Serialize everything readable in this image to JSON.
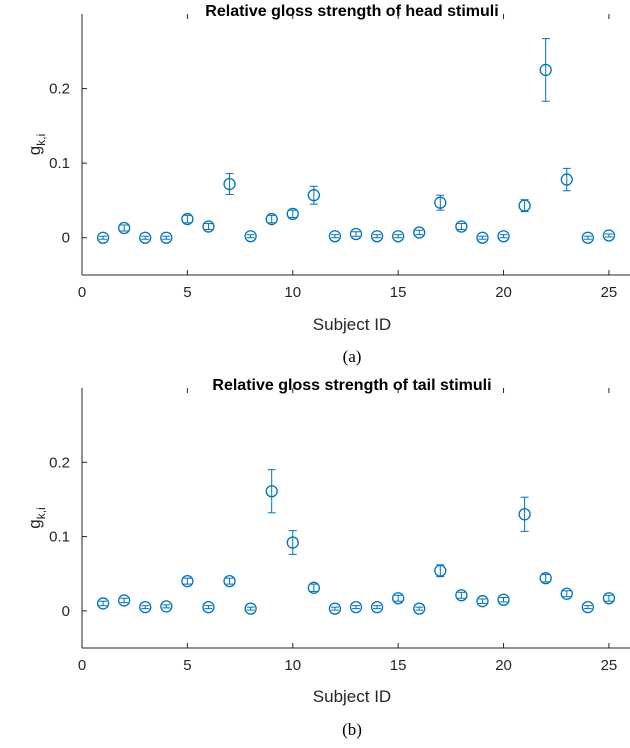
{
  "chart_data": [
    {
      "type": "scatter",
      "title": "Relative gloss strength of head stimuli",
      "xlabel": "Subject ID",
      "ylabel": "g",
      "ylabel_subscript": "k,i",
      "caption": "(a)",
      "xlim": [
        0,
        26
      ],
      "ylim": [
        -0.05,
        0.3
      ],
      "xticks": [
        0,
        5,
        10,
        15,
        20,
        25
      ],
      "yticks": [
        0,
        0.1,
        0.2
      ],
      "color": "#0072BD",
      "grid": false,
      "x": [
        1,
        2,
        3,
        4,
        5,
        6,
        7,
        8,
        9,
        10,
        11,
        12,
        13,
        14,
        15,
        16,
        17,
        18,
        19,
        20,
        21,
        22,
        23,
        24,
        25
      ],
      "y": [
        0.0,
        0.013,
        0.0,
        0.0,
        0.025,
        0.015,
        0.072,
        0.002,
        0.025,
        0.032,
        0.057,
        0.002,
        0.005,
        0.002,
        0.002,
        0.007,
        0.047,
        0.015,
        0.0,
        0.002,
        0.043,
        0.225,
        0.078,
        0.0,
        0.003
      ],
      "err": [
        0.002,
        0.004,
        0.002,
        0.002,
        0.005,
        0.004,
        0.014,
        0.002,
        0.005,
        0.005,
        0.012,
        0.002,
        0.003,
        0.002,
        0.002,
        0.003,
        0.01,
        0.004,
        0.002,
        0.002,
        0.008,
        0.042,
        0.015,
        0.002,
        0.002
      ]
    },
    {
      "type": "scatter",
      "title": "Relative gloss strength of tail stimuli",
      "xlabel": "Subject ID",
      "ylabel": "g",
      "ylabel_subscript": "k,i",
      "caption": "(b)",
      "xlim": [
        0,
        26
      ],
      "ylim": [
        -0.05,
        0.3
      ],
      "xticks": [
        0,
        5,
        10,
        15,
        20,
        25
      ],
      "yticks": [
        0,
        0.1,
        0.2
      ],
      "color": "#0072BD",
      "grid": false,
      "x": [
        1,
        2,
        3,
        4,
        5,
        6,
        7,
        8,
        9,
        10,
        11,
        12,
        13,
        14,
        15,
        16,
        17,
        18,
        19,
        20,
        21,
        22,
        23,
        24,
        25
      ],
      "y": [
        0.01,
        0.014,
        0.005,
        0.006,
        0.04,
        0.005,
        0.04,
        0.003,
        0.161,
        0.092,
        0.031,
        0.003,
        0.005,
        0.005,
        0.017,
        0.003,
        0.054,
        0.021,
        0.013,
        0.015,
        0.13,
        0.044,
        0.023,
        0.005,
        0.017
      ],
      "err": [
        0.003,
        0.003,
        0.002,
        0.002,
        0.004,
        0.002,
        0.004,
        0.002,
        0.029,
        0.016,
        0.005,
        0.002,
        0.002,
        0.002,
        0.004,
        0.002,
        0.008,
        0.004,
        0.003,
        0.003,
        0.023,
        0.005,
        0.004,
        0.002,
        0.004
      ]
    }
  ]
}
